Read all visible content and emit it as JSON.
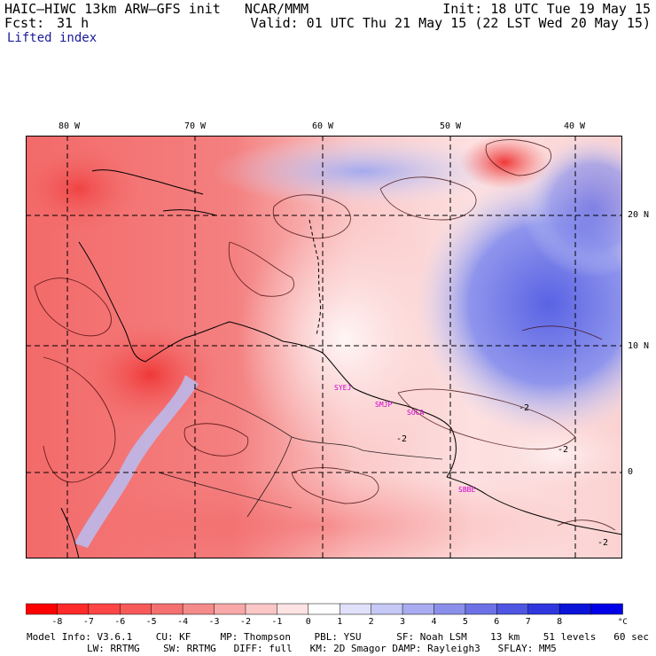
{
  "header": {
    "title_left": "HAIC–HIWC 13km ARW–GFS init   NCAR/MMM",
    "fcst_label": "Fcst:",
    "fcst_value": "31 h",
    "init": "Init: 18 UTC Tue 19 May 15",
    "valid": "Valid: 01 UTC Thu 21 May 15 (22 LST Wed 20 May 15)",
    "variable": "Lifted index"
  },
  "map": {
    "lon_labels": [
      "80 W",
      "70 W",
      "60 W",
      "50 W",
      "40 W"
    ],
    "lat_labels": [
      "20 N",
      "10 N",
      "0"
    ],
    "contour_labels": [
      "-2",
      "-2",
      "-2",
      "-2"
    ],
    "stations": [
      "SYEJ",
      "SMJP",
      "SOCA",
      "SBBE"
    ],
    "colors": {
      "negative_strong": "#f02020",
      "negative_light": "#fbd0d0",
      "positive_light": "#d8dcf6",
      "positive_strong": "#3d4be0",
      "grid": "#000000",
      "station": "#cc00cc"
    }
  },
  "colorbar": {
    "ticks": [
      "-8",
      "-7",
      "-6",
      "-5",
      "-4",
      "-3",
      "-2",
      "-1",
      "0",
      "1",
      "2",
      "3",
      "4",
      "5",
      "6",
      "7",
      "8"
    ],
    "unit": "°C",
    "colors": [
      "#ff0000",
      "#ff2a2a",
      "#ff4545",
      "#f85a5a",
      "#f57070",
      "#f58a8a",
      "#f8a8a8",
      "#fbc6c6",
      "#fde3e3",
      "#ffffff",
      "#e0e0fa",
      "#c6c8f5",
      "#a9acf0",
      "#8a90ea",
      "#6c72e6",
      "#4f56e2",
      "#3036de",
      "#0a14d8",
      "#0000e6"
    ]
  },
  "footer": {
    "line1": "Model Info: V3.6.1    CU: KF     MP: Thompson    PBL: YSU      SF: Noah LSM    13 km    51 levels   60 sec",
    "line2": "LW: RRTMG    SW: RRTMG   DIFF: full   KM: 2D Smagor DAMP: Rayleigh3   SFLAY: MM5"
  }
}
